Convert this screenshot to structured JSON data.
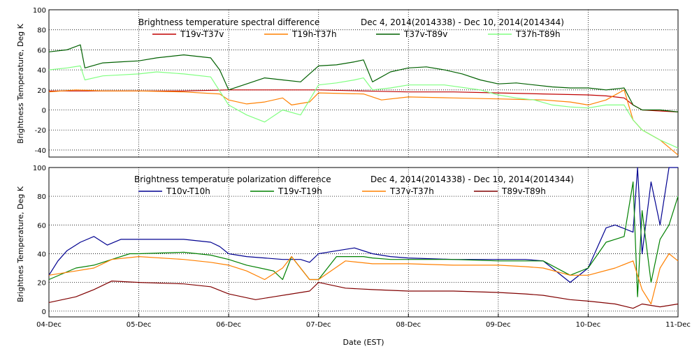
{
  "chart_data": [
    {
      "type": "line",
      "title": "Brightness temperature spectral difference",
      "date_range": "Dec  4, 2014(2014338) - Dec 10, 2014(2014344)",
      "ylabel": "Brightness Temperature, Deg K",
      "xlim": [
        0,
        7
      ],
      "ylim": [
        -47,
        100
      ],
      "yticks": [
        -40,
        -20,
        0,
        20,
        40,
        60,
        80,
        100
      ],
      "grid": true,
      "legend": "top",
      "series": [
        {
          "name": "T19v-T37v",
          "color": "#c00000",
          "x": [
            0,
            0.5,
            1.0,
            1.5,
            2.0,
            2.5,
            3.0,
            3.5,
            4.0,
            4.5,
            5.0,
            5.5,
            6.0,
            6.2,
            6.4,
            6.5,
            6.6,
            6.8,
            7.0
          ],
          "y": [
            19,
            19,
            19,
            19,
            20,
            20,
            20,
            19,
            18,
            18,
            17,
            16,
            15,
            14,
            12,
            5,
            0,
            -1,
            -2
          ]
        },
        {
          "name": "T19h-T37h",
          "color": "#ff8000",
          "x": [
            0,
            0.3,
            0.6,
            1.0,
            1.5,
            1.9,
            2.0,
            2.2,
            2.4,
            2.6,
            2.7,
            2.9,
            3.0,
            3.5,
            3.7,
            4.0,
            4.5,
            5.0,
            5.5,
            5.8,
            6.0,
            6.2,
            6.4,
            6.5,
            6.6,
            6.8,
            7.0
          ],
          "y": [
            18,
            20,
            19,
            19,
            18,
            16,
            10,
            6,
            8,
            12,
            5,
            8,
            17,
            16,
            10,
            13,
            12,
            11,
            10,
            8,
            5,
            10,
            20,
            -10,
            -20,
            -30,
            -45
          ]
        },
        {
          "name": "T37v-T89v",
          "color": "#006000",
          "x": [
            0,
            0.2,
            0.35,
            0.4,
            0.6,
            0.8,
            1.0,
            1.2,
            1.5,
            1.8,
            1.9,
            2.0,
            2.2,
            2.4,
            2.6,
            2.8,
            3.0,
            3.2,
            3.4,
            3.5,
            3.6,
            3.8,
            4.0,
            4.2,
            4.4,
            4.6,
            4.8,
            5.0,
            5.2,
            5.4,
            5.6,
            5.8,
            6.0,
            6.2,
            6.4,
            6.5,
            6.6,
            6.8,
            7.0
          ],
          "y": [
            58,
            60,
            65,
            42,
            47,
            48,
            49,
            52,
            55,
            52,
            40,
            20,
            26,
            32,
            30,
            28,
            44,
            45,
            48,
            50,
            28,
            38,
            42,
            43,
            40,
            36,
            30,
            26,
            27,
            25,
            23,
            22,
            22,
            20,
            22,
            5,
            0,
            0,
            -2
          ]
        },
        {
          "name": "T37h-T89h",
          "color": "#80ff80",
          "x": [
            0,
            0.2,
            0.35,
            0.4,
            0.6,
            0.8,
            1.0,
            1.2,
            1.5,
            1.8,
            2.0,
            2.2,
            2.4,
            2.6,
            2.8,
            3.0,
            3.2,
            3.4,
            3.5,
            3.6,
            3.8,
            4.0,
            4.4,
            4.8,
            5.0,
            5.2,
            5.4,
            5.6,
            5.8,
            6.0,
            6.2,
            6.4,
            6.5,
            6.6,
            6.8,
            7.0
          ],
          "y": [
            40,
            42,
            44,
            30,
            34,
            35,
            36,
            38,
            36,
            33,
            5,
            -5,
            -12,
            0,
            -5,
            25,
            27,
            30,
            32,
            20,
            22,
            25,
            25,
            20,
            15,
            12,
            10,
            5,
            3,
            2,
            5,
            5,
            -10,
            -20,
            -30,
            -38
          ]
        }
      ]
    },
    {
      "type": "line",
      "title": "Brightness temperature polarization difference",
      "date_range": "Dec  4, 2014(2014338) - Dec 10, 2014(2014344)",
      "ylabel": "Brightnes Temperature, Deg K",
      "xlabel": "Date (EST)",
      "xlim": [
        0,
        7
      ],
      "ylim": [
        -4,
        100
      ],
      "yticks": [
        0,
        20,
        40,
        60,
        80,
        100
      ],
      "xticks": [
        0,
        1,
        2,
        3,
        4,
        5,
        6,
        7
      ],
      "xtick_labels": [
        "04-Dec",
        "05-Dec",
        "06-Dec",
        "07-Dec",
        "08-Dec",
        "09-Dec",
        "10-Dec",
        "11-Dec"
      ],
      "grid": true,
      "legend": "top",
      "series": [
        {
          "name": "T10v-T10h",
          "color": "#000090",
          "x": [
            0,
            0.1,
            0.2,
            0.35,
            0.5,
            0.65,
            0.8,
            1.0,
            1.5,
            1.8,
            1.9,
            2.0,
            2.2,
            2.4,
            2.6,
            2.8,
            2.9,
            3.0,
            3.2,
            3.4,
            3.6,
            3.8,
            4.0,
            4.5,
            5.0,
            5.3,
            5.5,
            5.8,
            6.0,
            6.2,
            6.3,
            6.5,
            6.55,
            6.6,
            6.7,
            6.8,
            6.9,
            7.0
          ],
          "y": [
            25,
            35,
            42,
            48,
            52,
            46,
            50,
            50,
            50,
            48,
            45,
            40,
            38,
            37,
            36,
            36,
            34,
            40,
            42,
            44,
            40,
            38,
            37,
            36,
            36,
            36,
            35,
            20,
            30,
            58,
            60,
            55,
            100,
            40,
            90,
            60,
            100,
            100
          ]
        },
        {
          "name": "T19v-T19h",
          "color": "#008000",
          "x": [
            0,
            0.3,
            0.5,
            0.7,
            0.9,
            1.0,
            1.5,
            1.8,
            2.0,
            2.2,
            2.5,
            2.6,
            2.7,
            2.9,
            3.0,
            3.2,
            3.5,
            3.6,
            3.8,
            4.0,
            4.5,
            5.0,
            5.3,
            5.5,
            5.8,
            6.0,
            6.2,
            6.3,
            6.4,
            6.5,
            6.55,
            6.6,
            6.7,
            6.8,
            6.9,
            7.0
          ],
          "y": [
            22,
            30,
            32,
            36,
            40,
            40,
            41,
            39,
            36,
            32,
            28,
            22,
            38,
            22,
            22,
            38,
            38,
            37,
            36,
            36,
            36,
            35,
            35,
            35,
            25,
            30,
            48,
            50,
            52,
            90,
            10,
            70,
            20,
            50,
            60,
            80
          ]
        },
        {
          "name": "T37v-T37h",
          "color": "#ff8000",
          "x": [
            0,
            0.3,
            0.5,
            0.7,
            1.0,
            1.5,
            1.8,
            2.0,
            2.2,
            2.4,
            2.6,
            2.7,
            2.9,
            3.0,
            3.3,
            3.6,
            4.0,
            4.5,
            5.0,
            5.3,
            5.5,
            5.8,
            6.0,
            6.3,
            6.5,
            6.6,
            6.7,
            6.8,
            6.9,
            7.0
          ],
          "y": [
            25,
            28,
            30,
            36,
            38,
            36,
            34,
            32,
            28,
            22,
            30,
            38,
            22,
            22,
            35,
            33,
            33,
            32,
            32,
            31,
            30,
            25,
            25,
            30,
            35,
            15,
            5,
            30,
            40,
            35
          ]
        },
        {
          "name": "T89v-T89h",
          "color": "#800000",
          "x": [
            0,
            0.3,
            0.5,
            0.7,
            1.0,
            1.5,
            1.8,
            2.0,
            2.3,
            2.5,
            2.7,
            2.9,
            3.0,
            3.3,
            3.6,
            4.0,
            4.5,
            5.0,
            5.3,
            5.5,
            5.8,
            6.0,
            6.3,
            6.5,
            6.6,
            6.8,
            7.0
          ],
          "y": [
            6,
            10,
            15,
            21,
            20,
            19,
            17,
            12,
            8,
            10,
            12,
            14,
            20,
            16,
            15,
            14,
            14,
            13,
            12,
            11,
            8,
            7,
            5,
            2,
            5,
            3,
            5
          ]
        }
      ]
    }
  ]
}
